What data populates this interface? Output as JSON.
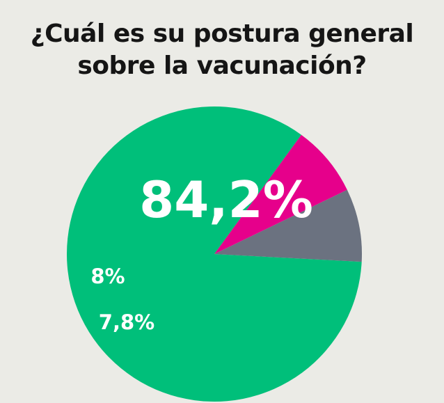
{
  "chart_data": {
    "type": "pie",
    "title_lines": [
      "¿Cuál es su postura general",
      "sobre la vacunación?"
    ],
    "slices": [
      {
        "value": 84.2,
        "label": "84,2%",
        "color": "#00bf7a"
      },
      {
        "value": 7.8,
        "label": "7,8%",
        "color": "#e6008b"
      },
      {
        "value": 8,
        "label": "8%",
        "color": "#6b7280"
      }
    ]
  }
}
